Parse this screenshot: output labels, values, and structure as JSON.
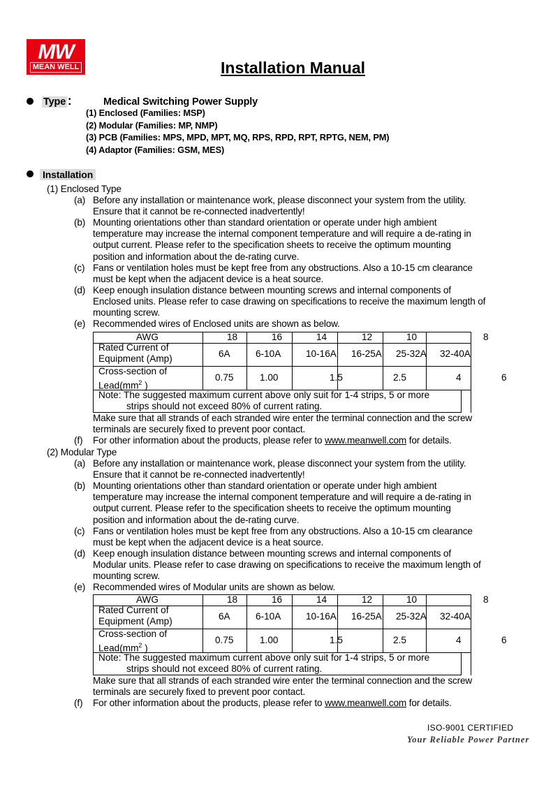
{
  "logo": {
    "mark": "MW",
    "name": "MEAN WELL",
    "color": "#e60012"
  },
  "title": "Installation Manual",
  "type_section": {
    "label": "Type",
    "colon": "：",
    "heading": "Medical Switching Power Supply",
    "items": [
      "(1)  Enclosed (Families: MSP)",
      "(2)  Modular (Families: MP, NMP)",
      "(3)   PCB (Families: MPS, MPD, MPT, MQ, RPS, RPD, RPT, RPTG, NEM, PM)",
      "(4)  Adaptor (Families: GSM, MES)"
    ]
  },
  "installation": {
    "label": "Installation",
    "sections": [
      {
        "label": "(1)  Enclosed Type",
        "items": [
          {
            "label": "(a)",
            "lines": [
              "Before any installation or maintenance work, please disconnect your system from the utility.",
              "Ensure that it cannot be re-connected inadvertently!"
            ]
          },
          {
            "label": "(b)",
            "lines": [
              "Mounting orientations other than standard orientation or operate under high ambient",
              "temperature may increase the internal component temperature and will require a de-rating in",
              "output current. Please refer to the specification sheets to receive the optimum mounting",
              "position and information about the de-rating curve."
            ]
          },
          {
            "label": "(c)",
            "lines": [
              "Fans or ventilation holes must be kept free from any obstructions. Also a 10-15 cm clearance",
              "must be kept when the adjacent device is a heat source."
            ]
          },
          {
            "label": "(d)",
            "lines": [
              "Keep enough insulation distance between mounting screws and internal components of",
              "Enclosed units. Please refer to case drawing on specifications to receive the maximum length of",
              "mounting screw."
            ]
          },
          {
            "label": "(e)",
            "lines": [
              "Recommended wires of Enclosed units are shown as below."
            ]
          }
        ],
        "after_table": [
          "Make sure that all strands of each stranded wire enter the terminal connection and the screw",
          "terminals are securely fixed to prevent poor contact."
        ],
        "f": {
          "label": "(f)",
          "before": "For other information about the products, please refer to ",
          "link": "www.meanwell.com",
          "after": " for details."
        }
      },
      {
        "label": "(2)  Modular Type",
        "items": [
          {
            "label": "(a)",
            "lines": [
              "Before any installation or maintenance work, please disconnect your system from the utility.",
              "Ensure that it cannot be re-connected inadvertently!"
            ]
          },
          {
            "label": "(b)",
            "lines": [
              "Mounting orientations other than standard orientation or operate under high ambient",
              "temperature may increase the internal component temperature and will require a de-rating in",
              "output current. Please refer to the specification sheets to receive the optimum mounting",
              "position and information about the de-rating curve."
            ]
          },
          {
            "label": "(c)",
            "lines": [
              "Fans or ventilation holes must be kept free from any obstructions. Also a 10-15 cm clearance",
              "must be kept when the adjacent device is a heat source."
            ]
          },
          {
            "label": "(d)",
            "lines": [
              "Keep enough insulation distance between mounting screws and internal components of",
              "Modular units. Please refer to case drawing on specifications to receive the maximum length of",
              "mounting screw."
            ]
          },
          {
            "label": "(e)",
            "lines": [
              "Recommended wires of Modular units are shown as below."
            ]
          }
        ],
        "after_table": [
          "Make sure that all strands of each stranded wire enter the terminal connection and the screw",
          "terminals are securely fixed to prevent poor contact."
        ],
        "f": {
          "label": "(f)",
          "before": "For other information about the products, please refer to ",
          "link": "www.meanwell.com",
          "after": " for details."
        }
      }
    ]
  },
  "wire_table": {
    "awg_label": "AWG",
    "awg": [
      "18",
      "16",
      "14",
      "12",
      "10",
      "8"
    ],
    "current_label": [
      "Rated Current of",
      "Equipment (Amp)"
    ],
    "current": [
      "6A",
      "6-10A",
      "10-16A",
      "16-25A",
      "25-32A",
      "32-40A"
    ],
    "section_label": "Cross-section of Lead(mm",
    "section_sup": "2",
    "section_close": " )",
    "section": [
      "0.75",
      "1.00",
      "1.5",
      "2.5",
      "4",
      "6"
    ],
    "note": [
      "Note: The suggested maximum current above only suit for 1-4 strips, 5 or more",
      "strips should not exceed 80% of current rating."
    ]
  },
  "footer": {
    "cert": "ISO-9001 CERTIFIED",
    "slogan": "Your Reliable Power Partner"
  }
}
